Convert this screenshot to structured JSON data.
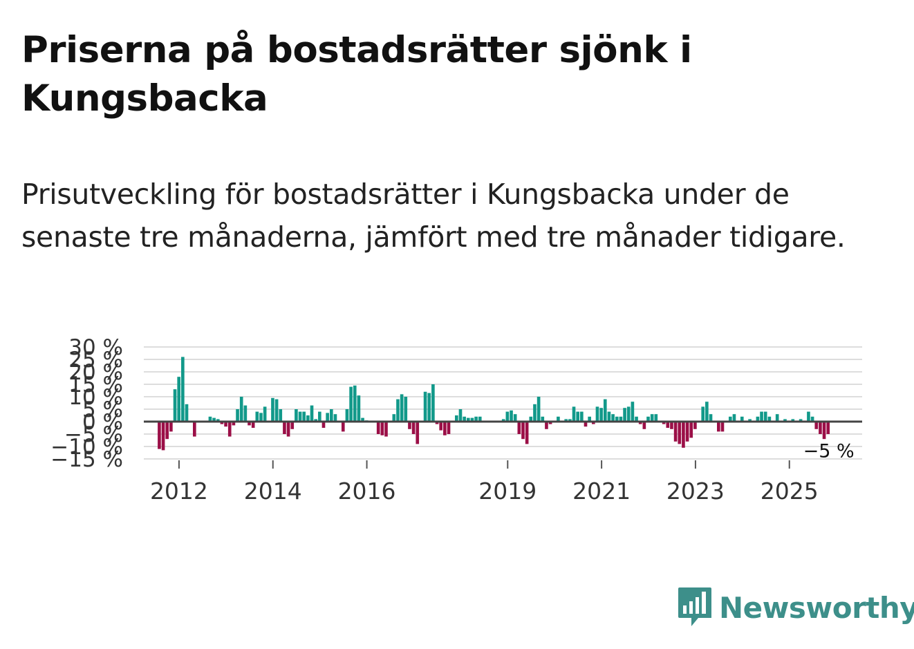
{
  "title": "Priserna på bostadsrätter sjönk i Kungsbacka",
  "subtitle": "Prisutveckling för bostadsrätter i Kungsbacka under de senaste tre månaderna, jämfört med tre månader tidigare.",
  "brand": {
    "name": "Newsworthy",
    "color": "#3d8f8a"
  },
  "colors": {
    "positive": "#12998a",
    "negative": "#9b0f47",
    "grid": "#dddddd",
    "zero": "#444444"
  },
  "chart_data": {
    "type": "bar",
    "title": "Priserna på bostadsrätter sjönk i Kungsbacka",
    "ylabel": "",
    "xlabel": "",
    "ylim": [
      -15,
      30
    ],
    "y_ticks": [
      30,
      25,
      20,
      15,
      10,
      5,
      0,
      -5,
      -10,
      -15
    ],
    "y_tick_labels": [
      "30 %",
      "25 %",
      "20 %",
      "15 %",
      "10 %",
      "5 %",
      "0 %",
      "−5 %",
      "−10 %",
      "−15 %"
    ],
    "x_tick_labels": [
      "2012",
      "2014",
      "2016",
      "2019",
      "2021",
      "2023",
      "2025"
    ],
    "x_tick_positions": [
      2012.0,
      2014.0,
      2016.0,
      2019.0,
      2021.0,
      2023.0,
      2025.0
    ],
    "x_range": [
      2011.25,
      2026.55
    ],
    "start": 2011.58,
    "step": 0.0833,
    "last_value_label": "−5 %",
    "values": [
      -11,
      -11.5,
      -7,
      -4,
      13,
      18,
      26,
      7,
      0,
      -6,
      0,
      0,
      0,
      2,
      1.5,
      1,
      -1,
      -2,
      -6,
      -1.5,
      5,
      10,
      6.5,
      -1.5,
      -2.5,
      4,
      3.5,
      6,
      0,
      9.5,
      9,
      5,
      -5,
      -6,
      -3,
      5,
      4,
      4,
      2.5,
      6.5,
      1,
      4,
      -2.5,
      3.5,
      5,
      3,
      0,
      -4,
      5,
      14,
      14.5,
      10.5,
      1.5,
      0.5,
      0,
      0,
      -5,
      -5.5,
      -6,
      0,
      3,
      9,
      11,
      10,
      -3,
      -5,
      -9,
      0,
      12,
      11.5,
      15,
      -1,
      -3.5,
      -5.5,
      -5,
      0,
      2.5,
      5,
      2,
      1.5,
      1.5,
      2,
      2,
      0,
      0,
      0,
      0,
      0,
      1,
      4,
      4.5,
      3,
      -5,
      -7,
      -9,
      2,
      7,
      10,
      2,
      -3,
      -1,
      0,
      2,
      0,
      1,
      1,
      6,
      4,
      4,
      -2,
      2,
      -1,
      6,
      5.5,
      9,
      4,
      3,
      2,
      2,
      5.5,
      6,
      8,
      2,
      -1,
      -3,
      2,
      3,
      3,
      0,
      -1,
      -2.5,
      -3,
      -8,
      -9,
      -10.5,
      -8,
      -6.5,
      -3,
      0,
      6,
      8,
      3,
      0,
      -4,
      -4,
      0,
      2,
      3,
      0,
      2,
      0,
      1,
      0,
      2,
      4,
      4,
      2,
      0,
      3,
      0,
      1,
      0,
      1,
      0,
      1,
      0,
      4,
      2,
      -3,
      -5,
      -7,
      -5
    ]
  }
}
